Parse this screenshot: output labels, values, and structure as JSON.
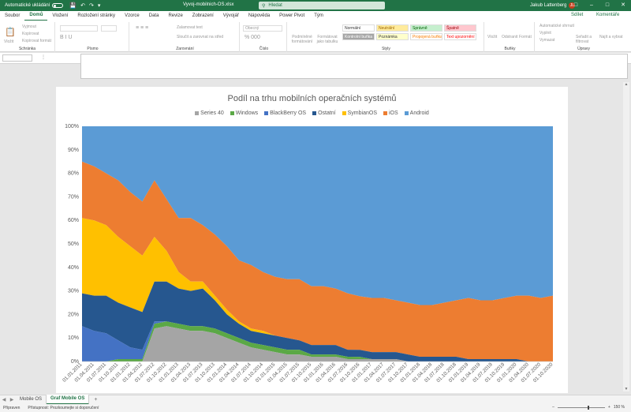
{
  "titlebar": {
    "autosave_label": "Automatické ukládání",
    "filename": "Vyvoj-mobilnich-OS.xlsx",
    "search_placeholder": "Hledat",
    "user_name": "Jakub Lattenberg",
    "user_initials": "JL"
  },
  "menu": {
    "tabs": [
      "Soubor",
      "Domů",
      "Vložení",
      "Rozložení stránky",
      "Vzorce",
      "Data",
      "Revize",
      "Zobrazení",
      "Vývojář",
      "Nápověda",
      "Power Pivot",
      "Tým"
    ],
    "active": "Domů",
    "share": "Sdílet",
    "comments": "Komentáře"
  },
  "ribbon": {
    "groups": [
      "Schránka",
      "Písmo",
      "Zarovnání",
      "Číslo",
      "Styly",
      "Buňky",
      "Úpravy"
    ],
    "clipboard": [
      "Vložit",
      "Vyjmout",
      "Kopírovat",
      "Kopírovat formát"
    ],
    "alignment": [
      "Zalamovat text",
      "Sloučit a zarovnat na střed"
    ],
    "number_format": "Obecný",
    "styles_buttons": [
      "Podmíněné formátování",
      "Formátovat jako tabulku"
    ],
    "styles": [
      {
        "label": "Normální",
        "bg": "#ffffff",
        "fg": "#333333"
      },
      {
        "label": "Neutrální",
        "bg": "#ffeb9c",
        "fg": "#9c6500"
      },
      {
        "label": "Správně",
        "bg": "#c6efce",
        "fg": "#006100"
      },
      {
        "label": "Špatně",
        "bg": "#ffc7ce",
        "fg": "#9c0006"
      },
      {
        "label": "Kontrolní buňka",
        "bg": "#a5a5a5",
        "fg": "#ffffff"
      },
      {
        "label": "Poznámka",
        "bg": "#ffffcc",
        "fg": "#333333"
      },
      {
        "label": "Propojená buňka",
        "bg": "#ffffff",
        "fg": "#fa7d00"
      },
      {
        "label": "Text upozornění",
        "bg": "#ffffff",
        "fg": "#ff0000"
      }
    ],
    "cells": [
      "Vložit",
      "Odstranit",
      "Formát"
    ],
    "editing": [
      "Automatické shrnutí",
      "Vyplnit",
      "Vymazat",
      "Seřadit a filtrovat",
      "Najít a vybrat"
    ]
  },
  "sheet_tabs": [
    "Mobile OS",
    "Graf Mobile OS"
  ],
  "active_sheet": "Graf Mobile OS",
  "status": {
    "ready": "Připraven",
    "accessibility": "Přístupnost: Prozkoumejte si doporučení",
    "zoom": "150 %"
  },
  "chart_data": {
    "type": "area",
    "stacked": "percent",
    "title": "Podíl na trhu mobilních operačních systémů",
    "legend_position": "top",
    "ylim": [
      0,
      100
    ],
    "yticks": [
      "0%",
      "10%",
      "20%",
      "30%",
      "40%",
      "50%",
      "60%",
      "70%",
      "80%",
      "90%",
      "100%"
    ],
    "x": [
      "01.01.2011",
      "01.04.2011",
      "01.07.2011",
      "01.10.2011",
      "01.01.2012",
      "01.04.2012",
      "01.07.2012",
      "01.10.2012",
      "01.01.2013",
      "01.04.2013",
      "01.07.2013",
      "01.10.2013",
      "01.01.2014",
      "01.04.2014",
      "01.07.2014",
      "01.10.2014",
      "01.01.2015",
      "01.04.2015",
      "01.07.2015",
      "01.10.2015",
      "01.01.2016",
      "01.04.2016",
      "01.07.2016",
      "01.10.2016",
      "01.01.2017",
      "01.04.2017",
      "01.07.2017",
      "01.10.2017",
      "01.01.2018",
      "01.04.2018",
      "01.07.2018",
      "01.10.2018",
      "01.01.2019",
      "01.04.2019",
      "01.07.2019",
      "01.10.2019",
      "01.01.2020",
      "01.04.2020",
      "01.07.2020",
      "01.10.2020"
    ],
    "series": [
      {
        "name": "Series 40",
        "color": "#a5a5a5",
        "values": [
          0,
          0,
          0,
          0,
          0,
          0,
          14,
          15,
          14,
          13,
          13,
          12,
          10,
          8,
          6,
          5,
          4,
          3,
          3,
          2,
          2,
          2,
          1,
          1,
          1,
          1,
          1,
          0,
          0,
          0,
          0,
          0,
          0,
          0,
          0,
          0,
          0,
          0,
          0,
          0
        ]
      },
      {
        "name": "Windows",
        "color": "#5ba846",
        "values": [
          0,
          0,
          0,
          1,
          1,
          1,
          2,
          2,
          2,
          2,
          2,
          2,
          2,
          2,
          2,
          2,
          2,
          2,
          2,
          1,
          1,
          1,
          1,
          1,
          0,
          0,
          0,
          0,
          0,
          0,
          0,
          0,
          0,
          0,
          0,
          0,
          0,
          0,
          0,
          0
        ]
      },
      {
        "name": "BlackBerry OS",
        "color": "#4472c4",
        "values": [
          15,
          13,
          12,
          8,
          5,
          4,
          1,
          0,
          0,
          0,
          0,
          0,
          0,
          0,
          0,
          0,
          0,
          0,
          0,
          0,
          0,
          0,
          0,
          0,
          0,
          0,
          0,
          0,
          0,
          0,
          0,
          0,
          0,
          0,
          0,
          0,
          0,
          0,
          0,
          0
        ]
      },
      {
        "name": "Ostatní",
        "color": "#26578f",
        "values": [
          14,
          15,
          16,
          16,
          17,
          16,
          17,
          17,
          15,
          15,
          16,
          12,
          8,
          6,
          5,
          5,
          5,
          5,
          4,
          4,
          4,
          4,
          3,
          3,
          3,
          3,
          3,
          3,
          2,
          2,
          2,
          2,
          1,
          1,
          1,
          1,
          1,
          0,
          0,
          0
        ]
      },
      {
        "name": "SymbianOS",
        "color": "#ffc000",
        "values": [
          32,
          32,
          30,
          28,
          26,
          24,
          19,
          13,
          7,
          4,
          3,
          2,
          2,
          1,
          1,
          1,
          0,
          0,
          0,
          0,
          0,
          0,
          0,
          0,
          0,
          0,
          0,
          0,
          0,
          0,
          0,
          0,
          0,
          0,
          0,
          0,
          0,
          0,
          0,
          0
        ]
      },
      {
        "name": "iOS",
        "color": "#ed7d31",
        "values": [
          24,
          23,
          22,
          24,
          23,
          23,
          24,
          22,
          23,
          27,
          24,
          26,
          27,
          26,
          27,
          25,
          25,
          25,
          26,
          25,
          25,
          24,
          24,
          23,
          23,
          23,
          22,
          22,
          22,
          22,
          23,
          24,
          26,
          25,
          25,
          26,
          27,
          28,
          27,
          28
        ]
      },
      {
        "name": "Android",
        "color": "#5b9bd5",
        "values": [
          15,
          17,
          20,
          23,
          28,
          32,
          23,
          31,
          39,
          39,
          42,
          46,
          51,
          57,
          59,
          62,
          64,
          65,
          65,
          68,
          68,
          69,
          71,
          73,
          73,
          73,
          74,
          75,
          76,
          76,
          75,
          74,
          73,
          74,
          74,
          73,
          72,
          72,
          73,
          72
        ]
      }
    ]
  }
}
